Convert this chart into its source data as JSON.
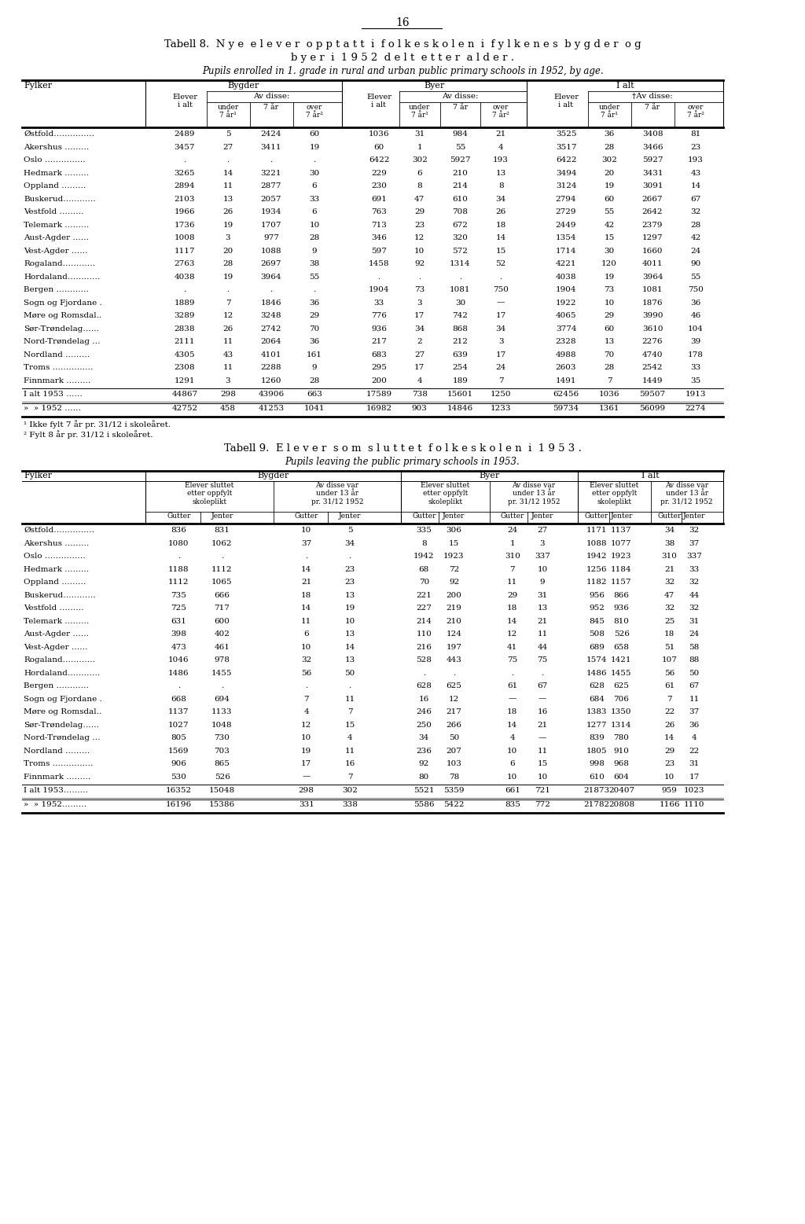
{
  "page_number": "16",
  "table8_title1": "Tabell 8.  N y e  e l e v e r  o p p t a t t  i  f o l k e s k o l e n  i  f y l k e n e s  b y g d e r  o g",
  "table8_title2": "b y e r  i  1 9 5 2  d e l t  e t t e r  a l d e r .",
  "table8_subtitle": "Pupils enrolled in 1. grade in rural and urban public primary schools in 1952, by age.",
  "table8_fylker_display": [
    "Østfold……………",
    "Akershus ………",
    "Oslo ……………",
    "Hedmark ………",
    "Oppland ………",
    "Buskerud…………",
    "Vestfold ………",
    "Telemark ………",
    "Aust-Agder ……",
    "Vest-Agder ……",
    "Rogaland…………",
    "Hordaland…………",
    "Bergen …………",
    "Sogn og Fjordane .",
    "Møre og Romsdal..",
    "Sør-Trøndelag……",
    "Nord-Trøndelag …",
    "Nordland ………",
    "Troms ……………",
    "Finnmark ………"
  ],
  "table8_data": [
    [
      2489,
      5,
      2424,
      60,
      1036,
      31,
      984,
      21,
      3525,
      36,
      3408,
      81
    ],
    [
      3457,
      27,
      3411,
      19,
      60,
      1,
      55,
      4,
      3517,
      28,
      3466,
      23
    ],
    [
      ".",
      ".",
      ".",
      ".",
      6422,
      302,
      5927,
      193,
      6422,
      302,
      5927,
      193
    ],
    [
      3265,
      14,
      3221,
      30,
      229,
      6,
      210,
      13,
      3494,
      20,
      3431,
      43
    ],
    [
      2894,
      11,
      2877,
      6,
      230,
      8,
      214,
      8,
      3124,
      19,
      3091,
      14
    ],
    [
      2103,
      13,
      2057,
      33,
      691,
      47,
      610,
      34,
      2794,
      60,
      2667,
      67
    ],
    [
      1966,
      26,
      1934,
      6,
      763,
      29,
      708,
      26,
      2729,
      55,
      2642,
      32
    ],
    [
      1736,
      19,
      1707,
      10,
      713,
      23,
      672,
      18,
      2449,
      42,
      2379,
      28
    ],
    [
      1008,
      3,
      977,
      28,
      346,
      12,
      320,
      14,
      1354,
      15,
      1297,
      42
    ],
    [
      1117,
      20,
      1088,
      9,
      597,
      10,
      572,
      15,
      1714,
      30,
      1660,
      24
    ],
    [
      2763,
      28,
      2697,
      38,
      1458,
      92,
      1314,
      52,
      4221,
      120,
      4011,
      90
    ],
    [
      4038,
      19,
      3964,
      55,
      ".",
      ".",
      ".",
      ".",
      4038,
      19,
      3964,
      55
    ],
    [
      ".",
      ".",
      ".",
      ".",
      1904,
      73,
      1081,
      750,
      1904,
      73,
      1081,
      750
    ],
    [
      1889,
      7,
      1846,
      36,
      33,
      3,
      30,
      "—",
      1922,
      10,
      1876,
      36
    ],
    [
      3289,
      12,
      3248,
      29,
      776,
      17,
      742,
      17,
      4065,
      29,
      3990,
      46
    ],
    [
      2838,
      26,
      2742,
      70,
      936,
      34,
      868,
      34,
      3774,
      60,
      3610,
      104
    ],
    [
      2111,
      11,
      2064,
      36,
      217,
      2,
      212,
      3,
      2328,
      13,
      2276,
      39
    ],
    [
      4305,
      43,
      4101,
      161,
      683,
      27,
      639,
      17,
      4988,
      70,
      4740,
      178
    ],
    [
      2308,
      11,
      2288,
      9,
      295,
      17,
      254,
      24,
      2603,
      28,
      2542,
      33
    ],
    [
      1291,
      3,
      1260,
      28,
      200,
      4,
      189,
      7,
      1491,
      7,
      1449,
      35
    ]
  ],
  "table8_total1953": [
    "I alt 1953 ……",
    44867,
    298,
    43906,
    663,
    17589,
    738,
    15601,
    1250,
    62456,
    1036,
    59507,
    1913
  ],
  "table8_total1952": [
    "»  » 1952 ……",
    42752,
    458,
    41253,
    1041,
    16982,
    903,
    14846,
    1233,
    59734,
    1361,
    56099,
    2274
  ],
  "table8_footnote1": "¹ Ikke fylt 7 år pr. 31/12 i skoleåret.",
  "table8_footnote2": "² Fylt 8 år pr. 31/12 i skoleåret.",
  "table9_title": "Tabell 9.  E l e v e r  s o m  s l u t t e t  f o l k e s k o l e n  i  1 9 5 3 .",
  "table9_subtitle": "Pupils leaving the public primary schools in 1953.",
  "table9_fylker_display": [
    "Østfold……………",
    "Akershus ………",
    "Oslo ……………",
    "Hedmark ………",
    "Oppland ………",
    "Buskerud…………",
    "Vestfold ………",
    "Telemark ………",
    "Aust-Agder ……",
    "Vest-Agder ……",
    "Rogaland…………",
    "Hordaland…………",
    "Bergen …………",
    "Sogn og Fjordane .",
    "Møre og Romsdal..",
    "Sør-Trøndelag……",
    "Nord-Trøndelag …",
    "Nordland ………",
    "Troms ……………",
    "Finnmark ………"
  ],
  "table9_data": [
    [
      836,
      831,
      10,
      5,
      335,
      306,
      24,
      27,
      1171,
      1137,
      34,
      32
    ],
    [
      1080,
      1062,
      37,
      34,
      8,
      15,
      1,
      3,
      1088,
      1077,
      38,
      37
    ],
    [
      ".",
      ".",
      ".",
      ".",
      1942,
      1923,
      310,
      337,
      1942,
      1923,
      310,
      337
    ],
    [
      1188,
      1112,
      14,
      23,
      68,
      72,
      7,
      10,
      1256,
      1184,
      21,
      33
    ],
    [
      1112,
      1065,
      21,
      23,
      70,
      92,
      11,
      9,
      1182,
      1157,
      32,
      32
    ],
    [
      735,
      666,
      18,
      13,
      221,
      200,
      29,
      31,
      956,
      866,
      47,
      44
    ],
    [
      725,
      717,
      14,
      19,
      227,
      219,
      18,
      13,
      952,
      936,
      32,
      32
    ],
    [
      631,
      600,
      11,
      10,
      214,
      210,
      14,
      21,
      845,
      810,
      25,
      31
    ],
    [
      398,
      402,
      6,
      13,
      110,
      124,
      12,
      11,
      508,
      526,
      18,
      24
    ],
    [
      473,
      461,
      10,
      14,
      216,
      197,
      41,
      44,
      689,
      658,
      51,
      58
    ],
    [
      1046,
      978,
      32,
      13,
      528,
      443,
      75,
      75,
      1574,
      1421,
      107,
      88
    ],
    [
      1486,
      1455,
      56,
      50,
      ".",
      ".",
      ".",
      ".",
      1486,
      1455,
      56,
      50
    ],
    [
      ".",
      ".",
      ".",
      ".",
      628,
      625,
      61,
      67,
      628,
      625,
      61,
      67
    ],
    [
      668,
      694,
      7,
      11,
      16,
      12,
      "—",
      "—",
      684,
      706,
      7,
      11
    ],
    [
      1137,
      1133,
      4,
      7,
      246,
      217,
      18,
      16,
      1383,
      1350,
      22,
      37
    ],
    [
      1027,
      1048,
      12,
      15,
      250,
      266,
      14,
      21,
      1277,
      1314,
      26,
      36
    ],
    [
      805,
      730,
      10,
      4,
      34,
      50,
      4,
      "—",
      839,
      780,
      14,
      4
    ],
    [
      1569,
      703,
      19,
      11,
      236,
      207,
      10,
      11,
      1805,
      910,
      29,
      22
    ],
    [
      906,
      865,
      17,
      16,
      92,
      103,
      6,
      15,
      998,
      968,
      23,
      31
    ],
    [
      530,
      526,
      "—",
      7,
      80,
      78,
      10,
      10,
      610,
      604,
      10,
      17
    ]
  ],
  "table9_total1953": [
    "I alt 1953………",
    16352,
    15048,
    298,
    302,
    5521,
    5359,
    661,
    721,
    21873,
    20407,
    959,
    1023
  ],
  "table9_total1952": [
    "»  » 1952………",
    16196,
    15386,
    331,
    338,
    5586,
    5422,
    835,
    772,
    21782,
    20808,
    1166,
    1110
  ]
}
